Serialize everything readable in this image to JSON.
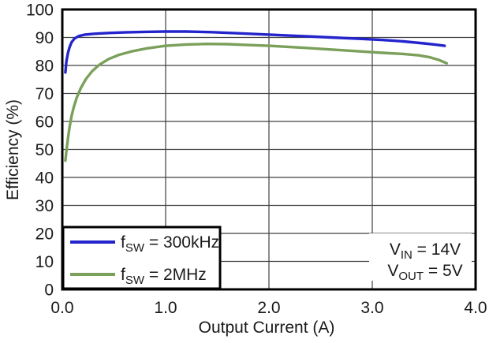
{
  "chart_data": {
    "type": "line",
    "title": "",
    "xlabel": "Output Current (A)",
    "ylabel": "Efficiency (%)",
    "xlim": [
      0.0,
      4.0
    ],
    "ylim": [
      0,
      100
    ],
    "grid": true,
    "x_tick_values": [
      0,
      1,
      2,
      3,
      4
    ],
    "x_tick_labels": [
      "0.0",
      "1.0",
      "2.0",
      "3.0",
      "4.0"
    ],
    "y_tick_values": [
      0,
      10,
      20,
      30,
      40,
      50,
      60,
      70,
      80,
      90,
      100
    ],
    "y_tick_labels": [
      "0",
      "10",
      "20",
      "30",
      "40",
      "50",
      "60",
      "70",
      "80",
      "90",
      "100"
    ],
    "x_gridlines": [
      1,
      2,
      3
    ],
    "y_gridlines": [
      10,
      20,
      30,
      40,
      50,
      60,
      70,
      80,
      90
    ],
    "legend_position": "bottom-left",
    "legend": {
      "entries": [
        {
          "pre": "f",
          "sub": "SW",
          "suf": " = 300kHz",
          "series": "300kHz"
        },
        {
          "pre": "f",
          "sub": "SW",
          "suf": " = 2MHz",
          "series": "2MHz"
        }
      ]
    },
    "annotation": {
      "lines": [
        {
          "pre": "V",
          "sub": "IN",
          "suf": " = 14V"
        },
        {
          "pre": "V",
          "sub": "OUT",
          "suf": " = 5V"
        }
      ]
    },
    "series": [
      {
        "name": "fSW = 300kHz",
        "color": "#2424cc",
        "points": [
          [
            0.03,
            77.5
          ],
          [
            0.04,
            81.5
          ],
          [
            0.055,
            84.5
          ],
          [
            0.07,
            86.5
          ],
          [
            0.09,
            88.3
          ],
          [
            0.12,
            89.7
          ],
          [
            0.16,
            90.5
          ],
          [
            0.22,
            91.0
          ],
          [
            0.3,
            91.3
          ],
          [
            0.45,
            91.6
          ],
          [
            0.6,
            91.8
          ],
          [
            0.8,
            92.0
          ],
          [
            1.0,
            92.1
          ],
          [
            1.2,
            92.1
          ],
          [
            1.45,
            91.9
          ],
          [
            1.7,
            91.5
          ],
          [
            2.0,
            91.0
          ],
          [
            2.3,
            90.5
          ],
          [
            2.6,
            90.0
          ],
          [
            2.9,
            89.5
          ],
          [
            3.1,
            89.1
          ],
          [
            3.3,
            88.6
          ],
          [
            3.5,
            87.9
          ],
          [
            3.6,
            87.5
          ],
          [
            3.7,
            87.0
          ]
        ]
      },
      {
        "name": "fSW = 2MHz",
        "color": "#7aa05a",
        "points": [
          [
            0.03,
            46.0
          ],
          [
            0.04,
            49.5
          ],
          [
            0.055,
            54.0
          ],
          [
            0.07,
            58.0
          ],
          [
            0.09,
            62.0
          ],
          [
            0.11,
            65.0
          ],
          [
            0.14,
            68.5
          ],
          [
            0.18,
            72.0
          ],
          [
            0.23,
            75.2
          ],
          [
            0.29,
            78.0
          ],
          [
            0.36,
            80.3
          ],
          [
            0.45,
            82.3
          ],
          [
            0.55,
            83.8
          ],
          [
            0.68,
            85.1
          ],
          [
            0.82,
            86.1
          ],
          [
            1.0,
            87.0
          ],
          [
            1.2,
            87.5
          ],
          [
            1.4,
            87.7
          ],
          [
            1.6,
            87.6
          ],
          [
            1.8,
            87.3
          ],
          [
            2.0,
            87.0
          ],
          [
            2.3,
            86.4
          ],
          [
            2.6,
            85.7
          ],
          [
            2.9,
            85.0
          ],
          [
            3.1,
            84.5
          ],
          [
            3.3,
            84.1
          ],
          [
            3.45,
            83.6
          ],
          [
            3.55,
            83.0
          ],
          [
            3.65,
            81.9
          ],
          [
            3.72,
            80.8
          ]
        ]
      }
    ],
    "colors": {
      "background": "#ffffff",
      "plot_border": "#000000",
      "grid": "#404040",
      "text": "#1a1a1a",
      "series_300khz": "#2424cc",
      "series_2mhz": "#7aa05a"
    }
  }
}
